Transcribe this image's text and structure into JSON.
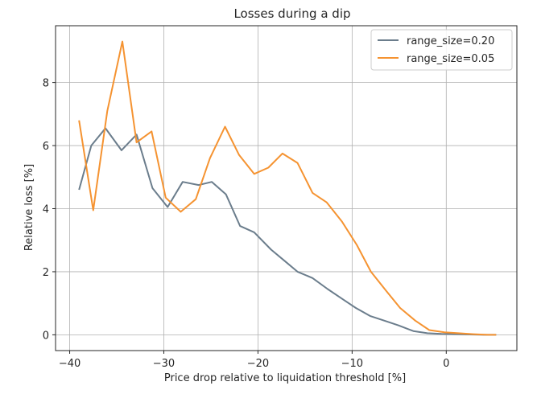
{
  "chart_data": {
    "type": "line",
    "title": "Losses during a dip",
    "xlabel": "Price drop relative to liquidation threshold [%]",
    "ylabel": "Relative loss [%]",
    "xlim": [
      -41.5,
      7.5
    ],
    "ylim": [
      -0.5,
      9.8
    ],
    "xticks": [
      -40,
      -30,
      -20,
      -10,
      0
    ],
    "xtick_labels": [
      "−40",
      "−30",
      "−20",
      "−10",
      "0"
    ],
    "yticks": [
      0,
      2,
      4,
      6,
      8
    ],
    "ytick_labels": [
      "0",
      "2",
      "4",
      "6",
      "8"
    ],
    "grid": true,
    "legend_position": "top-right",
    "series": [
      {
        "name": "range_size=0.20",
        "color": "#6b7d8c",
        "x": [
          -39.0,
          -37.7,
          -36.2,
          -34.5,
          -32.9,
          -31.2,
          -29.6,
          -28.0,
          -26.3,
          -24.9,
          -23.4,
          -21.9,
          -20.4,
          -18.6,
          -17.2,
          -15.8,
          -14.2,
          -12.6,
          -11.1,
          -9.6,
          -8.1,
          -6.6,
          -5.1,
          -3.5,
          -2.0,
          -0.5,
          1.0,
          2.5,
          4.0,
          5.3
        ],
        "y": [
          4.6,
          6.0,
          6.55,
          5.85,
          6.35,
          4.65,
          4.05,
          4.85,
          4.75,
          4.85,
          4.45,
          3.45,
          3.25,
          2.7,
          2.35,
          2.0,
          1.8,
          1.45,
          1.15,
          0.85,
          0.6,
          0.45,
          0.3,
          0.12,
          0.05,
          0.03,
          0.02,
          0.01,
          0.0,
          0.0
        ]
      },
      {
        "name": "range_size=0.05",
        "color": "#f59331",
        "x": [
          -39.0,
          -37.5,
          -36.0,
          -34.4,
          -32.9,
          -31.3,
          -29.8,
          -28.2,
          -26.6,
          -25.1,
          -23.5,
          -22.0,
          -20.4,
          -18.9,
          -17.4,
          -15.8,
          -14.2,
          -12.7,
          -11.1,
          -9.5,
          -8.0,
          -6.4,
          -4.9,
          -3.3,
          -1.8,
          -0.2,
          1.3,
          2.9,
          4.4,
          5.3
        ],
        "y": [
          6.8,
          3.95,
          7.1,
          9.3,
          6.1,
          6.45,
          4.35,
          3.9,
          4.3,
          5.6,
          6.6,
          5.7,
          5.1,
          5.3,
          5.75,
          5.45,
          4.5,
          4.2,
          3.6,
          2.85,
          2.0,
          1.4,
          0.85,
          0.45,
          0.15,
          0.08,
          0.05,
          0.02,
          0.0,
          0.0
        ]
      }
    ]
  }
}
